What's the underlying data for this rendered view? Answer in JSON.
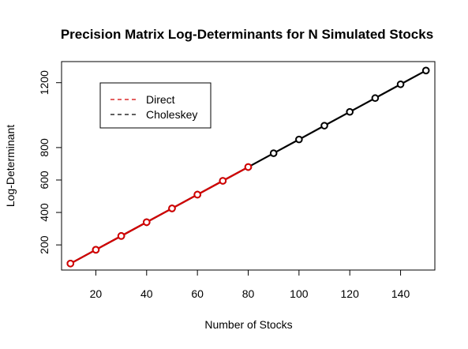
{
  "chart_data": {
    "type": "line",
    "title": "Precision Matrix Log-Determinants for N Simulated Stocks",
    "xlabel": "Number of Stocks",
    "ylabel": "Log-Determinant",
    "xlim": [
      6.5,
      153.5
    ],
    "ylim": [
      45,
      1330
    ],
    "x_ticks": [
      20,
      40,
      60,
      80,
      100,
      120,
      140
    ],
    "y_ticks": [
      200,
      400,
      600,
      800,
      1200
    ],
    "grid": false,
    "legend_position": "top-left",
    "series": [
      {
        "name": "Direct",
        "color": "#d40000",
        "line_style": "dashed",
        "x": [
          10,
          20,
          30,
          40,
          50,
          60,
          70,
          80
        ],
        "y": [
          85,
          170,
          255,
          340,
          425,
          510,
          595,
          680
        ]
      },
      {
        "name": "Choleskey",
        "color": "#000000",
        "line_style": "dashed",
        "x": [
          10,
          20,
          30,
          40,
          50,
          60,
          70,
          80,
          90,
          100,
          110,
          120,
          130,
          140,
          150
        ],
        "y": [
          85,
          170,
          255,
          340,
          425,
          510,
          595,
          680,
          765,
          850,
          935,
          1020,
          1105,
          1190,
          1275
        ]
      }
    ]
  }
}
